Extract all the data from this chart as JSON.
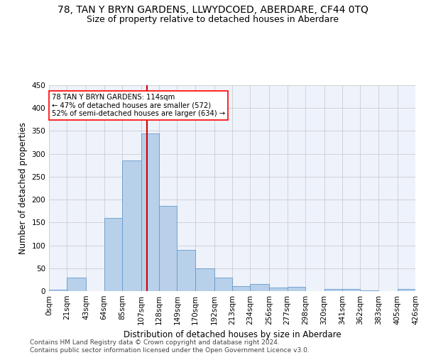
{
  "title": "78, TAN Y BRYN GARDENS, LLWYDCOED, ABERDARE, CF44 0TQ",
  "subtitle": "Size of property relative to detached houses in Aberdare",
  "xlabel": "Distribution of detached houses by size in Aberdare",
  "ylabel": "Number of detached properties",
  "bar_color": "#b8d0ea",
  "bar_edge_color": "#6699cc",
  "vline_color": "#cc0000",
  "vline_x": 114,
  "annotation_line1": "78 TAN Y BRYN GARDENS: 114sqm",
  "annotation_line2": "← 47% of detached houses are smaller (572)",
  "annotation_line3": "52% of semi-detached houses are larger (634) →",
  "bins": [
    0,
    21,
    43,
    64,
    85,
    107,
    128,
    149,
    170,
    192,
    213,
    234,
    256,
    277,
    298,
    320,
    341,
    362,
    383,
    405,
    426
  ],
  "counts": [
    3,
    30,
    0,
    160,
    285,
    345,
    186,
    90,
    50,
    30,
    11,
    15,
    7,
    10,
    0,
    5,
    5,
    1,
    0,
    5
  ],
  "ylim": [
    0,
    450
  ],
  "yticks": [
    0,
    50,
    100,
    150,
    200,
    250,
    300,
    350,
    400,
    450
  ],
  "bg_color": "#eef2fb",
  "grid_color": "#cccccc",
  "footer": "Contains HM Land Registry data © Crown copyright and database right 2024.\nContains public sector information licensed under the Open Government Licence v3.0.",
  "title_fontsize": 10,
  "subtitle_fontsize": 9,
  "xlabel_fontsize": 8.5,
  "ylabel_fontsize": 8.5,
  "tick_fontsize": 7.5,
  "footer_fontsize": 6.5
}
